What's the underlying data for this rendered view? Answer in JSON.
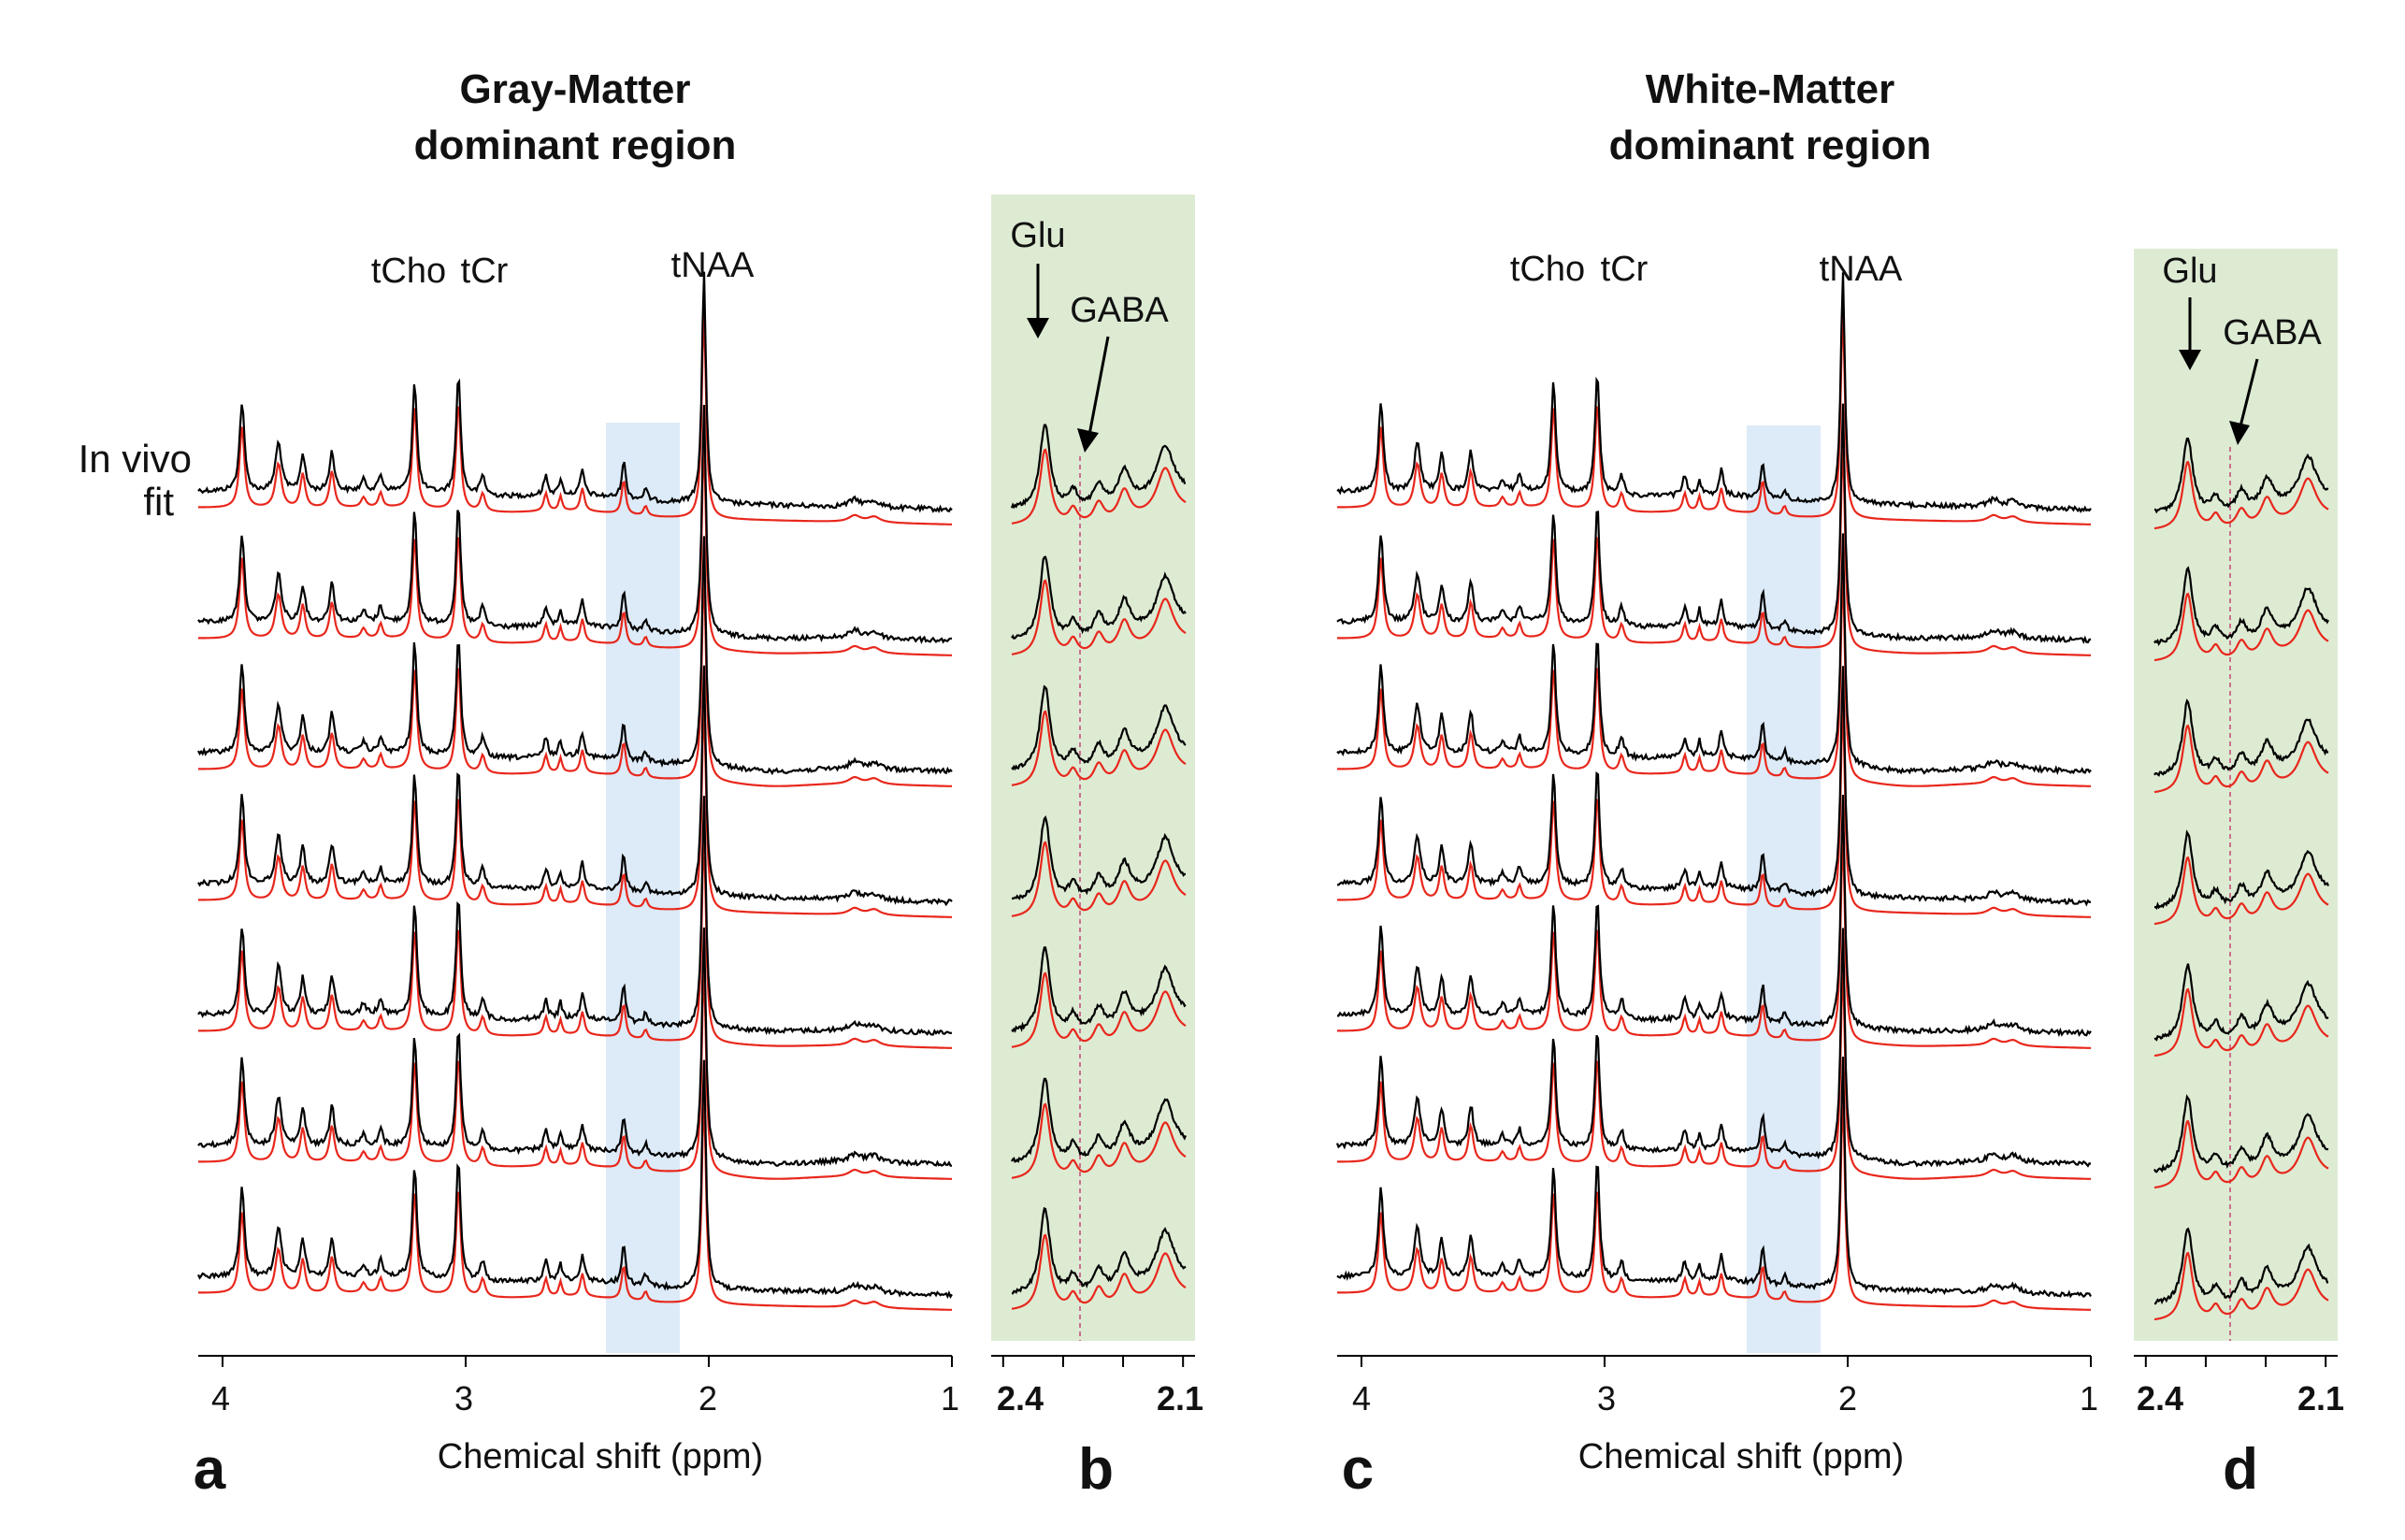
{
  "colors": {
    "in_vivo": "#000000",
    "fit": "#e8271c",
    "band": "#ddeaf7",
    "zoom_bg": "#ddebd3",
    "dashed": "#c9708c"
  },
  "row_labels": [
    "In vivo",
    "fit"
  ],
  "chart_data": [
    {
      "panel": "a",
      "type": "line",
      "title_lines": [
        "Gray-Matter",
        "dominant region"
      ],
      "xlabel": "Chemical shift (ppm)",
      "xlim": [
        4.1,
        1.0
      ],
      "ticks": [
        4,
        3,
        2,
        1
      ],
      "tick_labels": [
        "4",
        "3",
        "2",
        "1"
      ],
      "series_names": [
        "In vivo",
        "fit"
      ],
      "n_spectra": 7,
      "highlight_ppm": [
        2.4,
        2.1
      ],
      "peak_labels": [
        {
          "text": "tCho",
          "ppm": 3.2
        },
        {
          "text": "tCr",
          "ppm": 3.03
        },
        {
          "text": "tNAA",
          "ppm": 2.01
        }
      ]
    },
    {
      "panel": "b",
      "type": "line",
      "xlim": [
        2.42,
        2.08
      ],
      "ticks": [
        2.4,
        2.1
      ],
      "tick_labels": [
        "2.4",
        "2.1"
      ],
      "n_spectra": 7,
      "dashed_ppm": 2.3,
      "annotations": [
        {
          "text": "Glu",
          "ppm": 2.35
        },
        {
          "text": "GABA",
          "ppm": 2.29
        }
      ]
    },
    {
      "panel": "c",
      "type": "line",
      "title_lines": [
        "White-Matter",
        "dominant region"
      ],
      "xlabel": "Chemical shift (ppm)",
      "xlim": [
        4.1,
        1.0
      ],
      "ticks": [
        4,
        3,
        2,
        1
      ],
      "tick_labels": [
        "4",
        "3",
        "2",
        "1"
      ],
      "series_names": [
        "In vivo",
        "fit"
      ],
      "n_spectra": 7,
      "highlight_ppm": [
        2.4,
        2.1
      ],
      "peak_labels": [
        {
          "text": "tCho",
          "ppm": 3.2
        },
        {
          "text": "tCr",
          "ppm": 3.03
        },
        {
          "text": "tNAA",
          "ppm": 2.01
        }
      ]
    },
    {
      "panel": "d",
      "type": "line",
      "xlim": [
        2.42,
        2.08
      ],
      "ticks": [
        2.4,
        2.1
      ],
      "tick_labels": [
        "2.4",
        "2.1"
      ],
      "n_spectra": 7,
      "dashed_ppm": 2.3,
      "annotations": [
        {
          "text": "Glu",
          "ppm": 2.35
        },
        {
          "text": "GABA",
          "ppm": 2.29
        }
      ]
    }
  ]
}
